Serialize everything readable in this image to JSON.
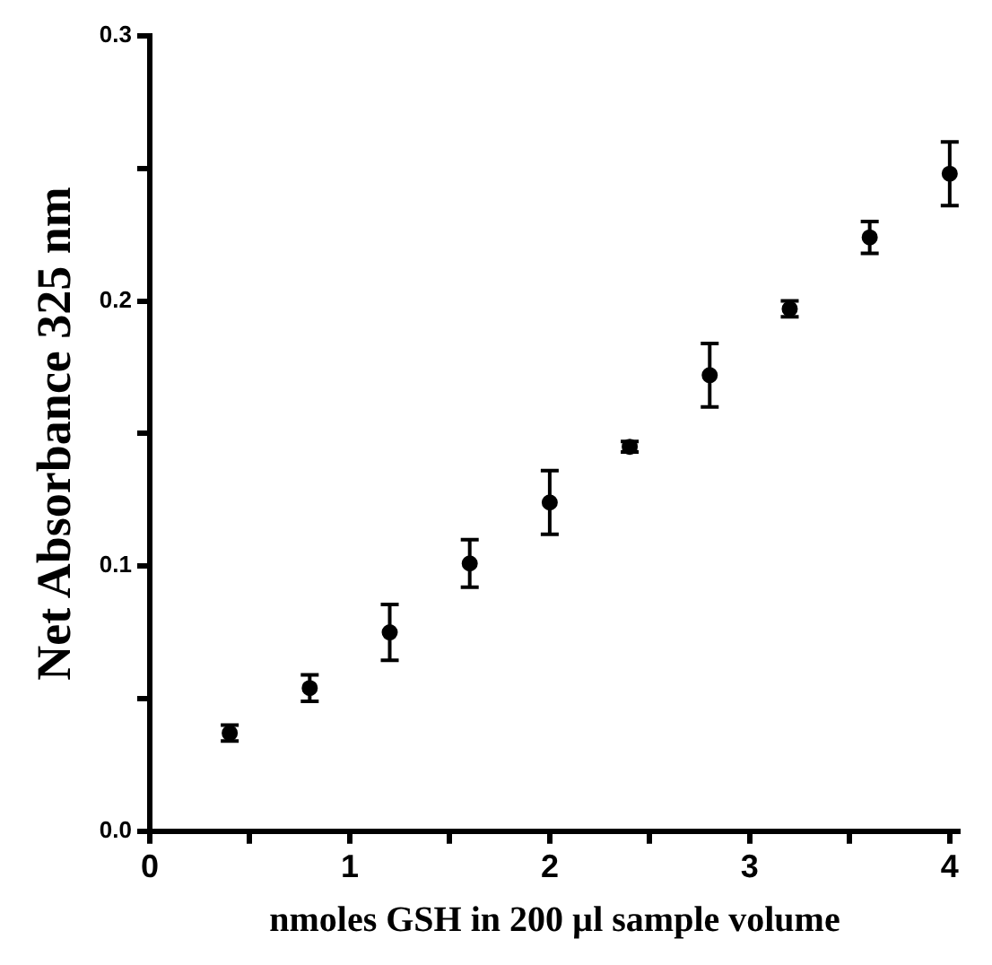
{
  "chart_data": {
    "type": "scatter",
    "xlabel": "nmoles GSH in 200 µl sample volume",
    "ylabel": "Net Absorbance 325 nm",
    "x": [
      0.4,
      0.8,
      1.2,
      1.6,
      2.0,
      2.4,
      2.8,
      3.2,
      3.6,
      4.0
    ],
    "values": [
      0.037,
      0.054,
      0.075,
      0.101,
      0.124,
      0.145,
      0.172,
      0.197,
      0.224,
      0.248
    ],
    "errors": [
      0.003,
      0.005,
      0.0105,
      0.009,
      0.012,
      0.002,
      0.012,
      0.003,
      0.006,
      0.012
    ],
    "color": "#000000",
    "marker": "circle",
    "xlim": [
      0,
      4.05
    ],
    "xticks": [
      0,
      {
        "value": 0.5,
        "label": null
      },
      1,
      {
        "value": 1.5,
        "label": null
      },
      2,
      {
        "value": 2.5,
        "label": null
      },
      3,
      {
        "value": 3.5,
        "label": null
      },
      4
    ],
    "ylim": [
      0,
      0.3
    ],
    "yticks": [
      {
        "value": 0,
        "label": "0.0"
      },
      {
        "value": 0.05,
        "label": null
      },
      {
        "value": 0.1,
        "label": "0.1"
      },
      {
        "value": 0.15,
        "label": null
      },
      {
        "value": 0.2,
        "label": "0.2"
      },
      {
        "value": 0.25,
        "label": null
      },
      {
        "value": 0.3,
        "label": "0.3"
      }
    ],
    "grid": false,
    "legend": false
  }
}
